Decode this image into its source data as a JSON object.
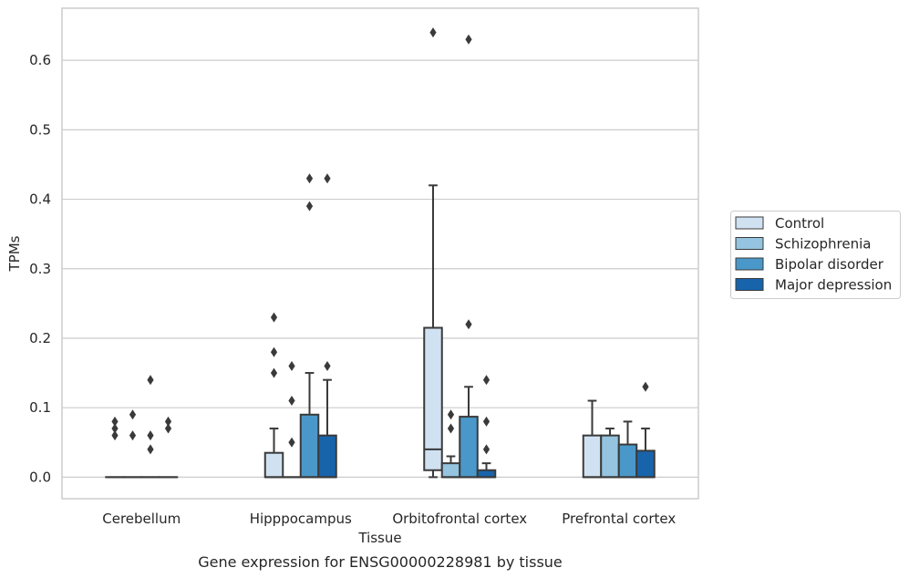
{
  "chart_data": {
    "type": "box",
    "xlabel": "Tissue",
    "ylabel": "TPMs",
    "caption": "Gene expression for ENSG00000228981 by tissue",
    "ylim": [
      -0.031,
      0.675
    ],
    "yticks": [
      0.0,
      0.1,
      0.2,
      0.3,
      0.4,
      0.5,
      0.6
    ],
    "ytick_labels": [
      "0.0",
      "0.1",
      "0.2",
      "0.3",
      "0.4",
      "0.5",
      "0.6"
    ],
    "grid": "horizontal",
    "legend_position": "right",
    "categories": [
      "Cerebellum",
      "Hipppocampus",
      "Orbitofrontal cortex",
      "Prefrontal cortex"
    ],
    "series": [
      {
        "name": "Control",
        "color": "#d0e1f2",
        "boxes": [
          {
            "min": 0,
            "q1": 0,
            "median": 0,
            "q3": 0,
            "max": 0,
            "outliers": [
              0.08,
              0.07,
              0.06
            ]
          },
          {
            "min": 0,
            "q1": 0,
            "median": 0,
            "q3": 0.035,
            "max": 0.07,
            "outliers": [
              0.23,
              0.18,
              0.15
            ]
          },
          {
            "min": 0,
            "q1": 0.01,
            "median": 0.04,
            "q3": 0.215,
            "max": 0.42,
            "outliers": [
              0.64
            ]
          },
          {
            "min": 0,
            "q1": 0,
            "median": 0,
            "q3": 0.06,
            "max": 0.11,
            "outliers": []
          }
        ]
      },
      {
        "name": "Schizophrenia",
        "color": "#94c4df",
        "boxes": [
          {
            "min": 0,
            "q1": 0,
            "median": 0,
            "q3": 0,
            "max": 0,
            "outliers": [
              0.09,
              0.06
            ]
          },
          {
            "min": 0,
            "q1": 0,
            "median": 0,
            "q3": 0,
            "max": 0,
            "outliers": [
              0.16,
              0.11,
              0.05
            ]
          },
          {
            "min": 0,
            "q1": 0,
            "median": 0,
            "q3": 0.02,
            "max": 0.03,
            "outliers": [
              0.09,
              0.07
            ]
          },
          {
            "min": 0,
            "q1": 0,
            "median": 0,
            "q3": 0.06,
            "max": 0.07,
            "outliers": []
          }
        ]
      },
      {
        "name": "Bipolar disorder",
        "color": "#4a98c9",
        "boxes": [
          {
            "min": 0,
            "q1": 0,
            "median": 0,
            "q3": 0,
            "max": 0,
            "outliers": [
              0.14,
              0.06,
              0.04
            ]
          },
          {
            "min": 0,
            "q1": 0,
            "median": 0,
            "q3": 0.09,
            "max": 0.15,
            "outliers": [
              0.43,
              0.39
            ]
          },
          {
            "min": 0,
            "q1": 0,
            "median": 0,
            "q3": 0.087,
            "max": 0.13,
            "outliers": [
              0.63,
              0.22
            ]
          },
          {
            "min": 0,
            "q1": 0,
            "median": 0,
            "q3": 0.047,
            "max": 0.08,
            "outliers": []
          }
        ]
      },
      {
        "name": "Major depression",
        "color": "#1764ab",
        "boxes": [
          {
            "min": 0,
            "q1": 0,
            "median": 0,
            "q3": 0,
            "max": 0,
            "outliers": [
              0.08,
              0.07
            ]
          },
          {
            "min": 0,
            "q1": 0,
            "median": 0,
            "q3": 0.06,
            "max": 0.14,
            "outliers": [
              0.43,
              0.16
            ]
          },
          {
            "min": 0,
            "q1": 0,
            "median": 0,
            "q3": 0.01,
            "max": 0.02,
            "outliers": [
              0.14,
              0.08,
              0.04
            ]
          },
          {
            "min": 0,
            "q1": 0,
            "median": 0,
            "q3": 0.038,
            "max": 0.07,
            "outliers": [
              0.13
            ]
          }
        ]
      }
    ]
  }
}
